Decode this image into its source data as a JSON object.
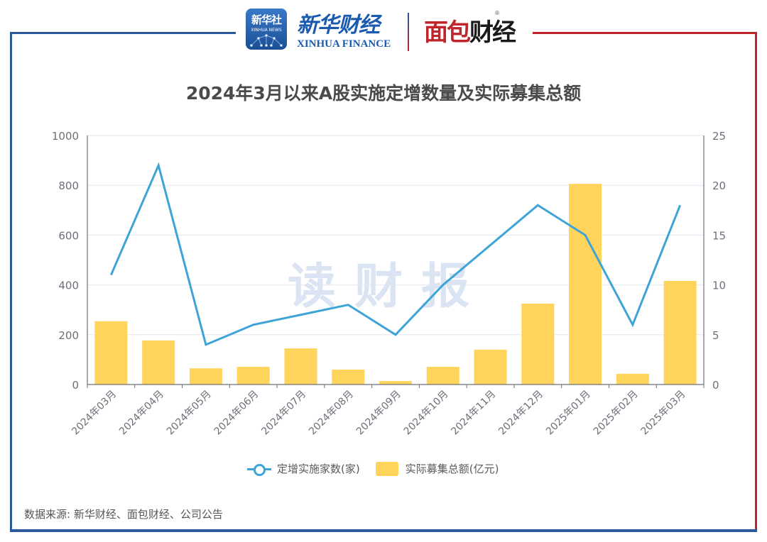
{
  "header": {
    "xinhua_badge_cn": "新华社",
    "xinhua_badge_en": "XINHUA NEWS",
    "xinhua_finance_cn": "新华财经",
    "xinhua_finance_en": "XINHUA FINANCE",
    "mianbao_logo": [
      "面",
      "包",
      "财",
      "经"
    ],
    "registered_mark": "®"
  },
  "watermark": "读财报",
  "colors": {
    "line": "#3ea4d8",
    "bar": "#ffd45c",
    "frame_blue": "#2a5a9c",
    "frame_red": "#c0252c"
  },
  "source": "数据来源: 新华财经、面包财经、公司公告",
  "chart_data": {
    "type": "bar",
    "title": "2024年3月以来A股实施定增数量及实际募集总额",
    "categories": [
      "2024年03月",
      "2024年04月",
      "2024年05月",
      "2024年06月",
      "2024年07月",
      "2024年08月",
      "2024年09月",
      "2024年10月",
      "2024年11月",
      "2024年12月",
      "2025年01月",
      "2025年02月",
      "2025年03月"
    ],
    "series": [
      {
        "name": "定增实施家数(家)",
        "type": "line",
        "axis": "right",
        "values": [
          11,
          22,
          4,
          6,
          7,
          8,
          5,
          10,
          14,
          18,
          15,
          6,
          18
        ]
      },
      {
        "name": "实际募集总额(亿元)",
        "type": "bar",
        "axis": "left",
        "values": [
          254,
          177,
          65,
          71,
          145,
          60,
          14,
          71,
          140,
          325,
          806,
          43,
          416
        ]
      }
    ],
    "left_axis": {
      "ylim": [
        0,
        1000
      ],
      "ticks": [
        "0",
        "200",
        "400",
        "600",
        "800",
        "1000"
      ]
    },
    "right_axis": {
      "ylim": [
        0,
        25
      ],
      "ticks": [
        "0",
        "5",
        "10",
        "15",
        "20",
        "25"
      ]
    },
    "xlabel": "",
    "ylabel": "",
    "grid": true,
    "legend_position": "bottom"
  }
}
